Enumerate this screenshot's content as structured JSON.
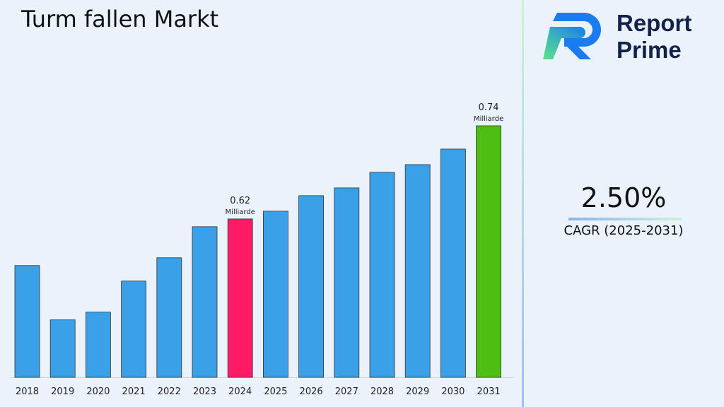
{
  "title": "Turm fallen Markt",
  "brand": {
    "line1": "Report",
    "line2": "Prime"
  },
  "cagr": {
    "value": "2.50%",
    "label": "CAGR (2025-2031)"
  },
  "colors": {
    "bar": "#3aa0e8",
    "highlight_2024": "#ff1a66",
    "highlight_2031": "#4cbf10"
  },
  "chart_data": {
    "type": "bar",
    "title": "Turm fallen Markt",
    "categories": [
      "2018",
      "2019",
      "2020",
      "2021",
      "2022",
      "2023",
      "2024",
      "2025",
      "2026",
      "2027",
      "2028",
      "2029",
      "2030",
      "2031"
    ],
    "values": [
      0.56,
      0.49,
      0.5,
      0.54,
      0.57,
      0.61,
      0.62,
      0.63,
      0.65,
      0.66,
      0.68,
      0.69,
      0.71,
      0.74
    ],
    "ylim": [
      0.416,
      0.78
    ],
    "grid": false,
    "data_labels": [
      {
        "category": "2024",
        "value": "0.62",
        "unit": "Milliarde"
      },
      {
        "category": "2031",
        "value": "0.74",
        "unit": "Milliarde"
      }
    ]
  }
}
